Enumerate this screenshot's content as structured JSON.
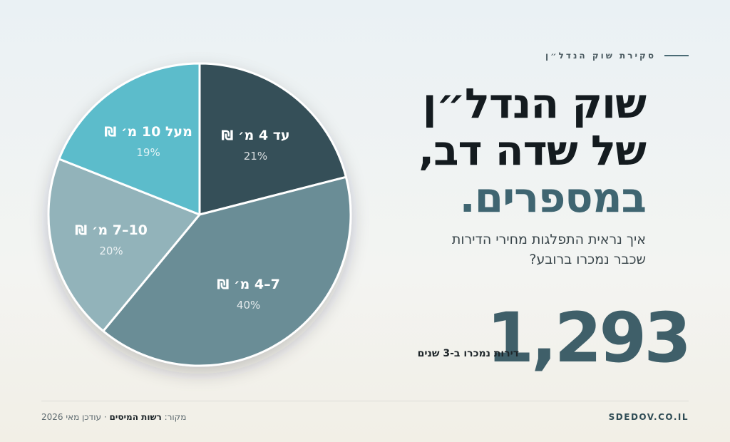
{
  "eyebrow": "סקירת שוק הנדל״ן",
  "title": {
    "line1": "שוק הנדל״ן",
    "line2": "של שדה דב,",
    "line3": "במספרים."
  },
  "subtitle": {
    "line1": "איך נראית התפלגות מחירי הדירות",
    "line2": "שכבר נמכרו ברובע?"
  },
  "stat": {
    "value": "1,293",
    "label": "דירות נמכרו ב-3 שנים"
  },
  "footer": {
    "site": "SDEDOV.CO.IL",
    "source_prefix": "מקור:",
    "source_name": "רשות המיסים",
    "updated": "· עודכן מאי 2026"
  },
  "chart_data": {
    "type": "pie",
    "slices": [
      {
        "label": "עד 4 מ׳ ₪",
        "value": 21,
        "pct_label": "21%",
        "color": "#355058"
      },
      {
        "label": "7–4 מ׳ ₪",
        "value": 40,
        "pct_label": "40%",
        "color": "#6b8d96"
      },
      {
        "label": "10–7 מ׳ ₪",
        "value": 20,
        "pct_label": "20%",
        "color": "#92b3ba"
      },
      {
        "label": "מעל 10 מ׳ ₪",
        "value": 19,
        "pct_label": "19%",
        "color": "#5bbccb"
      }
    ],
    "start_angle_deg": 0,
    "direction": "clockwise"
  }
}
